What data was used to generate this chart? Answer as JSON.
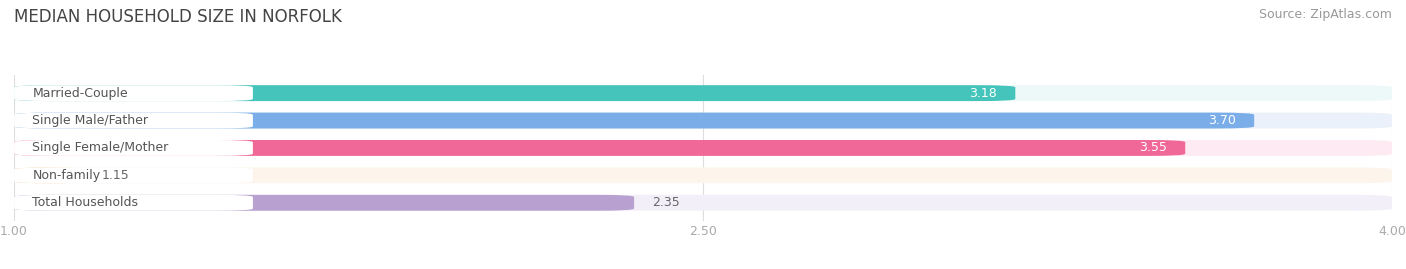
{
  "title": "MEDIAN HOUSEHOLD SIZE IN NORFOLK",
  "source": "Source: ZipAtlas.com",
  "categories": [
    "Married-Couple",
    "Single Male/Father",
    "Single Female/Mother",
    "Non-family",
    "Total Households"
  ],
  "values": [
    3.18,
    3.7,
    3.55,
    1.15,
    2.35
  ],
  "bar_colors": [
    "#45C4BC",
    "#7BAEE8",
    "#F06898",
    "#F5C894",
    "#B8A0D0"
  ],
  "bar_bg_colors": [
    "#EDF8F8",
    "#EBF1FA",
    "#FDEAF2",
    "#FDF5EC",
    "#F3EFF8"
  ],
  "xlim": [
    1.0,
    4.0
  ],
  "xticks": [
    1.0,
    2.5,
    4.0
  ],
  "value_color_inside": "#FFFFFF",
  "value_color_outside": "#666666",
  "label_color": "#555555",
  "title_color": "#444444",
  "title_fontsize": 12,
  "source_fontsize": 9,
  "label_fontsize": 9,
  "value_fontsize": 9,
  "tick_fontsize": 9,
  "background_color": "#FFFFFF",
  "bar_height": 0.58,
  "inside_threshold": 2.5
}
